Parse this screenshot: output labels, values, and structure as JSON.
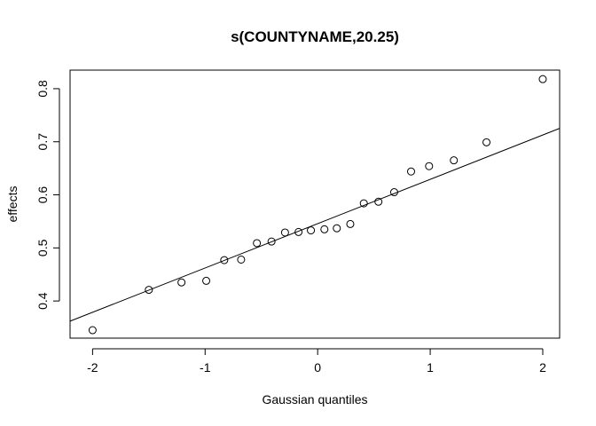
{
  "chart_data": {
    "type": "scatter",
    "title": "s(COUNTYNAME,20.25)",
    "xlabel": "Gaussian quantiles",
    "ylabel": "effects",
    "xlim": [
      -2.2,
      2.15
    ],
    "ylim": [
      0.33,
      0.835
    ],
    "x_ticks": [
      -2,
      -1,
      0,
      1,
      2
    ],
    "x_tick_labels": [
      "-2",
      "-1",
      "0",
      "1",
      "2"
    ],
    "y_ticks": [
      0.4,
      0.5,
      0.6,
      0.7,
      0.8
    ],
    "y_tick_labels": [
      "0.4",
      "0.5",
      "0.6",
      "0.7",
      "0.8"
    ],
    "grid": false,
    "series": [
      {
        "x": [
          -2.0,
          -1.5,
          -1.21,
          -0.99,
          -0.83,
          -0.68,
          -0.54,
          -0.41,
          -0.29,
          -0.17,
          -0.06,
          0.06,
          0.17,
          0.29,
          0.41,
          0.54,
          0.68,
          0.83,
          0.99,
          1.21,
          1.5,
          2.0
        ],
        "y": [
          0.345,
          0.421,
          0.435,
          0.438,
          0.477,
          0.478,
          0.509,
          0.512,
          0.529,
          0.53,
          0.533,
          0.535,
          0.537,
          0.545,
          0.584,
          0.587,
          0.605,
          0.644,
          0.654,
          0.665,
          0.699,
          0.818
        ]
      }
    ],
    "reference_line": {
      "intercept": 0.5457,
      "slope": 0.0835
    }
  }
}
